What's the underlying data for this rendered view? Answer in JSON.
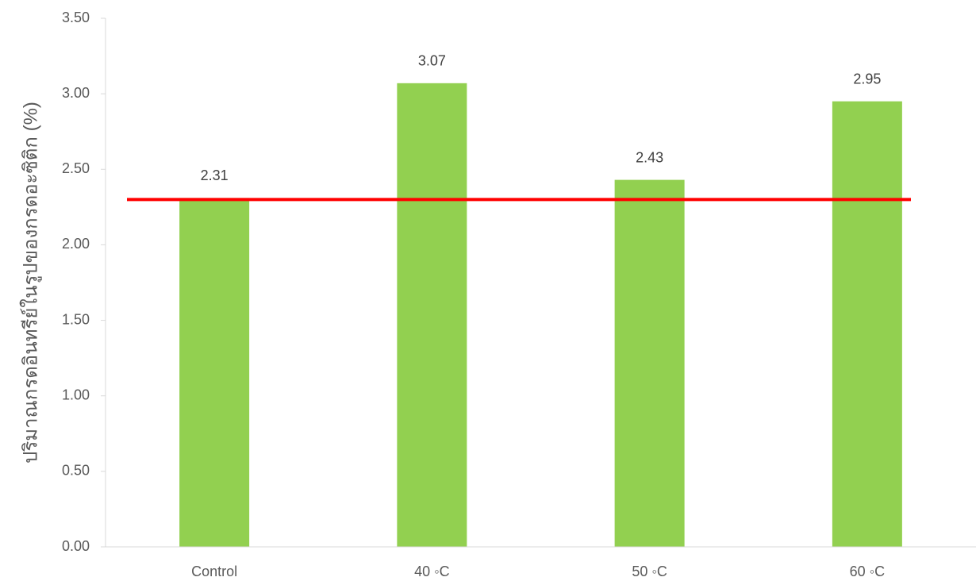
{
  "chart_data": {
    "type": "bar",
    "y_label": "ปริมาณกรดอินทรีย์ในรูปของกรดอะซิติก (%)",
    "categories": [
      "Control",
      "40 ◦C",
      "50 ◦C",
      "60 ◦C"
    ],
    "values": [
      2.31,
      3.07,
      2.43,
      2.95
    ],
    "color": "#92d050",
    "reference_line": {
      "value": 2.3,
      "color": "#ff0000"
    },
    "ylim": [
      0,
      3.5
    ],
    "yticks": [
      {
        "value": 0,
        "label": "0.00"
      },
      {
        "value": 0.5,
        "label": "0.50"
      },
      {
        "value": 1,
        "label": "1.00"
      },
      {
        "value": 1.5,
        "label": "1.50"
      },
      {
        "value": 2,
        "label": "2.00"
      },
      {
        "value": 2.5,
        "label": "2.50"
      },
      {
        "value": 3,
        "label": "3.00"
      },
      {
        "value": 3.5,
        "label": "3.50"
      }
    ],
    "grid": false
  }
}
